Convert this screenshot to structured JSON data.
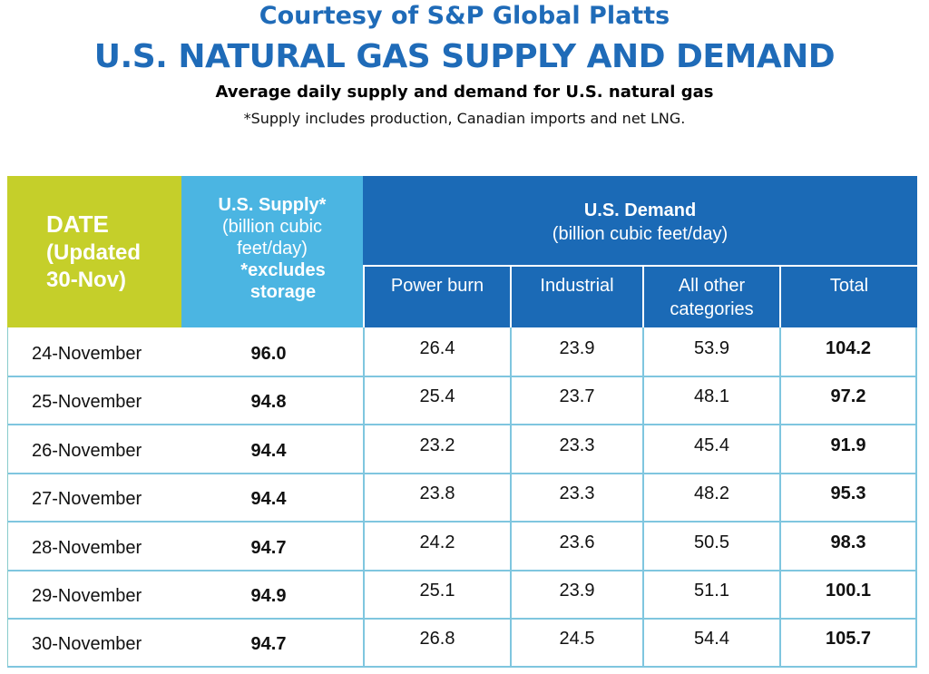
{
  "header": {
    "courtesy": "Courtesy of S&P Global Platts",
    "title": "U.S. NATURAL GAS SUPPLY AND DEMAND",
    "subtitle": "Average daily supply and demand for U.S. natural gas",
    "note": "*Supply includes production, Canadian imports and net LNG."
  },
  "colors": {
    "title_blue": "#1f6bb8",
    "date_header": "#c5cf2a",
    "supply_header": "#4bb5e2",
    "demand_header": "#1b6ab6",
    "row_rule": "#7fc6df"
  },
  "table": {
    "date_header": {
      "line1": "DATE",
      "line2": "(Updated",
      "line3": "30-Nov)"
    },
    "supply_header": {
      "line1": "U.S. Supply*",
      "line2": "(billion cubic",
      "line3": "feet/day)",
      "line4": "*excludes",
      "line5": "storage"
    },
    "demand_header": {
      "line1": "U.S. Demand",
      "line2": "(billion cubic feet/day)"
    },
    "demand_columns": {
      "power_burn": "Power burn",
      "industrial": "Industrial",
      "other_l1": "All other",
      "other_l2": "categories",
      "total": "Total"
    }
  },
  "chart_data": {
    "type": "table",
    "title": "U.S. NATURAL GAS SUPPLY AND DEMAND",
    "columns": [
      "DATE",
      "U.S. Supply*",
      "Power burn",
      "Industrial",
      "All other categories",
      "Total"
    ],
    "rows": [
      {
        "date": "24-November",
        "supply": "96.0",
        "power_burn": "26.4",
        "industrial": "23.9",
        "other": "53.9",
        "total": "104.2"
      },
      {
        "date": "25-November",
        "supply": "94.8",
        "power_burn": "25.4",
        "industrial": "23.7",
        "other": "48.1",
        "total": "97.2"
      },
      {
        "date": "26-November",
        "supply": "94.4",
        "power_burn": "23.2",
        "industrial": "23.3",
        "other": "45.4",
        "total": "91.9"
      },
      {
        "date": "27-November",
        "supply": "94.4",
        "power_burn": "23.8",
        "industrial": "23.3",
        "other": "48.2",
        "total": "95.3"
      },
      {
        "date": "28-November",
        "supply": "94.7",
        "power_burn": "24.2",
        "industrial": "23.6",
        "other": "50.5",
        "total": "98.3"
      },
      {
        "date": "29-November",
        "supply": "94.9",
        "power_burn": "25.1",
        "industrial": "23.9",
        "other": "51.1",
        "total": "100.1"
      },
      {
        "date": "30-November",
        "supply": "94.7",
        "power_burn": "26.8",
        "industrial": "24.5",
        "other": "54.4",
        "total": "105.7"
      }
    ]
  }
}
